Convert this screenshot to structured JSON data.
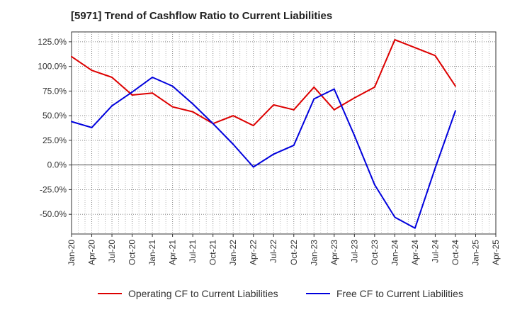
{
  "chart_data": {
    "type": "line",
    "title": "[5971]  Trend of Cashflow Ratio to Current Liabilities",
    "xlabel": "",
    "ylabel": "",
    "x_tick_labels": [
      "Jan-20",
      "Apr-20",
      "Jul-20",
      "Oct-20",
      "Jan-21",
      "Apr-21",
      "Jul-21",
      "Oct-21",
      "Jan-22",
      "Apr-22",
      "Jul-22",
      "Oct-22",
      "Jan-23",
      "Apr-23",
      "Jul-23",
      "Oct-23",
      "Jan-24",
      "Apr-24",
      "Jul-24",
      "Oct-24",
      "Jan-25",
      "Apr-25"
    ],
    "y_tick_labels": [
      "125.0%",
      "100.0%",
      "75.0%",
      "50.0%",
      "25.0%",
      "0.0%",
      "-25.0%",
      "-50.0%"
    ],
    "y_ticks": [
      125,
      100,
      75,
      50,
      25,
      0,
      -25,
      -50
    ],
    "ylim": [
      -70,
      135
    ],
    "grid": true,
    "legend_position": "bottom",
    "series": [
      {
        "name": "Operating CF to Current Liabilities",
        "color": "#dd0000",
        "x": [
          "Jan-20",
          "Apr-20",
          "Jul-20",
          "Oct-20",
          "Jan-21",
          "Apr-21",
          "Jul-21",
          "Oct-21",
          "Jan-22",
          "Apr-22",
          "Jul-22",
          "Oct-22",
          "Jan-23",
          "Apr-23",
          "Jul-23",
          "Oct-23",
          "Jan-24",
          "Apr-24",
          "Jul-24",
          "Oct-24"
        ],
        "values": [
          110,
          96,
          89,
          71,
          73,
          59,
          54,
          42,
          50,
          40,
          61,
          56,
          79,
          56,
          68,
          79,
          127,
          119,
          111,
          80
        ]
      },
      {
        "name": "Free CF to Current Liabilities",
        "color": "#0000dd",
        "x": [
          "Jan-20",
          "Apr-20",
          "Jul-20",
          "Oct-20",
          "Jan-21",
          "Apr-21",
          "Jul-21",
          "Oct-21",
          "Jan-22",
          "Apr-22",
          "Jul-22",
          "Oct-22",
          "Jan-23",
          "Apr-23",
          "Jul-23",
          "Oct-23",
          "Jan-24",
          "Apr-24",
          "Jul-24",
          "Oct-24"
        ],
        "values": [
          44,
          38,
          60,
          74,
          89,
          80,
          62,
          42,
          21,
          -2,
          11,
          20,
          67,
          77,
          30,
          -20,
          -53,
          -64,
          -3,
          55
        ]
      }
    ]
  }
}
